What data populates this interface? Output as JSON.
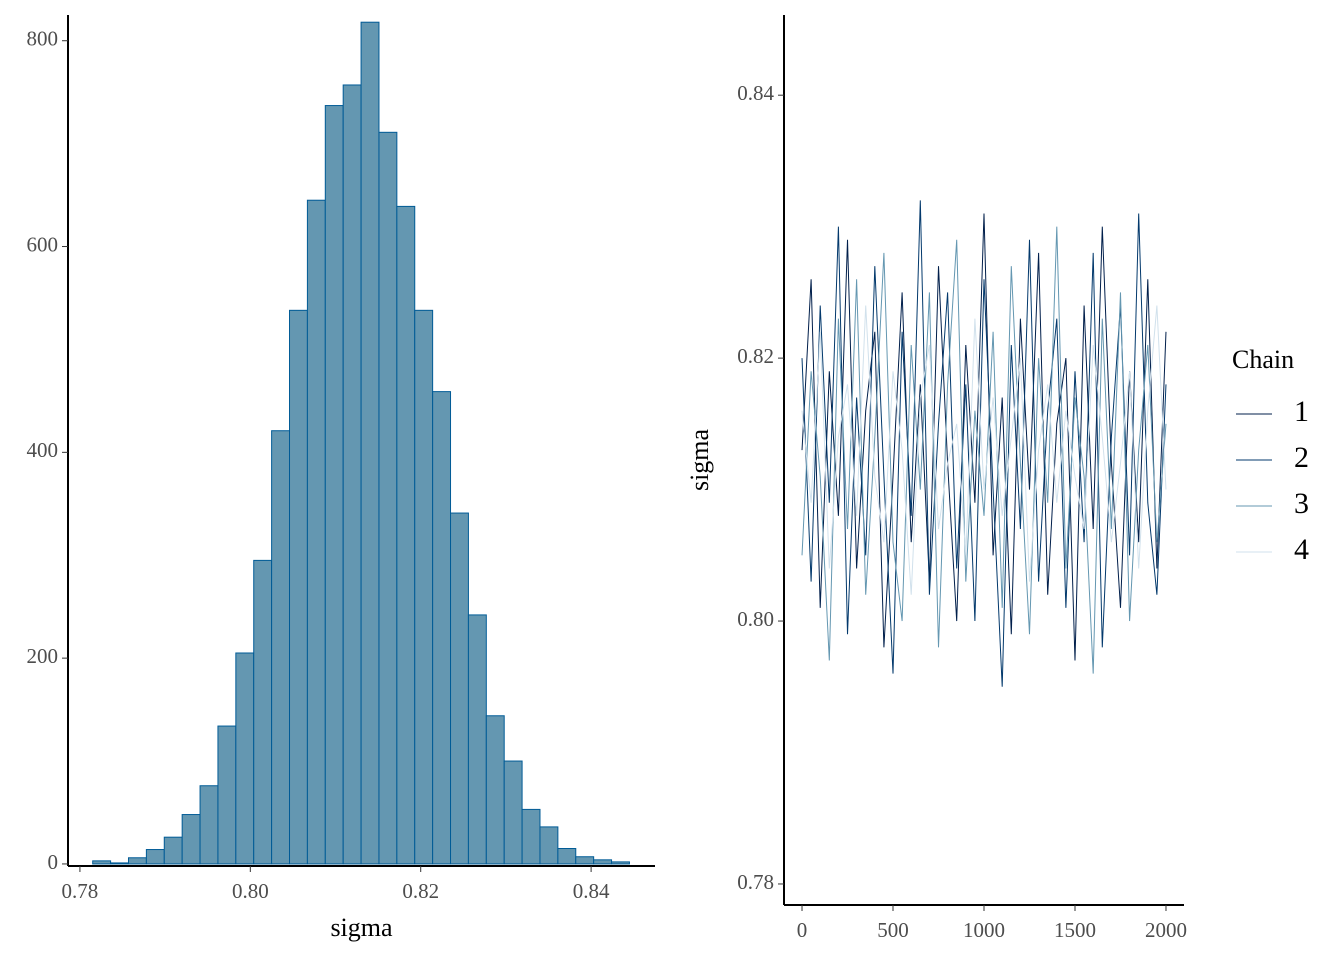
{
  "chart_data": [
    {
      "type": "histogram",
      "xlabel": "sigma",
      "bins": [
        0.7815,
        0.7836,
        0.7857,
        0.7878,
        0.7899,
        0.792,
        0.7941,
        0.7962,
        0.7983,
        0.8004,
        0.8025,
        0.8046,
        0.8067,
        0.8088,
        0.8109,
        0.813,
        0.8151,
        0.8172,
        0.8193,
        0.8214,
        0.8235,
        0.8256,
        0.8277,
        0.8298,
        0.8319,
        0.834,
        0.8361,
        0.8382,
        0.8403,
        0.8424,
        0.8445
      ],
      "values": [
        3,
        1,
        6,
        14,
        26,
        48,
        76,
        134,
        205,
        295,
        421,
        538,
        645,
        737,
        757,
        818,
        711,
        639,
        538,
        459,
        341,
        242,
        144,
        100,
        53,
        36,
        15,
        7,
        4,
        2
      ],
      "color": "#6497b1",
      "edge_color": "#005b96",
      "xlim": [
        0.7786,
        0.8475
      ],
      "ylim": [
        -2,
        825
      ],
      "xticks": [
        0.78,
        {
          "value": 0.8,
          "label": "0.80"
        },
        0.82,
        0.84
      ],
      "yticks": [
        0,
        200,
        400,
        600,
        800
      ]
    },
    {
      "type": "line",
      "ylabel": "sigma",
      "legend_title": "Chain",
      "x": [
        0,
        50,
        100,
        150,
        200,
        250,
        300,
        350,
        400,
        450,
        500,
        550,
        600,
        650,
        700,
        750,
        800,
        850,
        900,
        950,
        1000,
        1050,
        1100,
        1150,
        1200,
        1250,
        1300,
        1350,
        1400,
        1450,
        1500,
        1550,
        1600,
        1650,
        1700,
        1750,
        1800,
        1850,
        1900,
        1950,
        2000
      ],
      "series": [
        {
          "name": "1",
          "color": "#011f4b",
          "values": [
            0.813,
            0.826,
            0.801,
            0.819,
            0.808,
            0.829,
            0.804,
            0.816,
            0.822,
            0.798,
            0.811,
            0.825,
            0.806,
            0.818,
            0.803,
            0.827,
            0.812,
            0.8,
            0.821,
            0.809,
            0.831,
            0.805,
            0.817,
            0.799,
            0.823,
            0.81,
            0.828,
            0.802,
            0.815,
            0.82,
            0.797,
            0.824,
            0.807,
            0.83,
            0.812,
            0.801,
            0.819,
            0.806,
            0.826,
            0.804,
            0.822
          ]
        },
        {
          "name": "2",
          "color": "#03396c",
          "values": [
            0.82,
            0.803,
            0.824,
            0.809,
            0.83,
            0.799,
            0.817,
            0.805,
            0.827,
            0.811,
            0.796,
            0.822,
            0.808,
            0.832,
            0.802,
            0.815,
            0.825,
            0.804,
            0.818,
            0.8,
            0.826,
            0.81,
            0.795,
            0.821,
            0.807,
            0.829,
            0.803,
            0.816,
            0.823,
            0.801,
            0.819,
            0.806,
            0.828,
            0.798,
            0.814,
            0.824,
            0.805,
            0.831,
            0.809,
            0.802,
            0.818
          ]
        },
        {
          "name": "3",
          "color": "#6497b1",
          "values": [
            0.805,
            0.819,
            0.811,
            0.797,
            0.823,
            0.807,
            0.826,
            0.802,
            0.814,
            0.828,
            0.806,
            0.8,
            0.821,
            0.81,
            0.825,
            0.798,
            0.818,
            0.829,
            0.803,
            0.816,
            0.808,
            0.822,
            0.801,
            0.827,
            0.812,
            0.799,
            0.82,
            0.809,
            0.83,
            0.804,
            0.817,
            0.811,
            0.796,
            0.823,
            0.807,
            0.825,
            0.8,
            0.813,
            0.821,
            0.806,
            0.815
          ]
        },
        {
          "name": "4",
          "color": "#d1e1ec",
          "values": [
            0.816,
            0.809,
            0.822,
            0.804,
            0.814,
            0.818,
            0.808,
            0.824,
            0.811,
            0.806,
            0.819,
            0.813,
            0.802,
            0.817,
            0.821,
            0.807,
            0.812,
            0.815,
            0.805,
            0.823,
            0.81,
            0.817,
            0.808,
            0.814,
            0.82,
            0.803,
            0.813,
            0.818,
            0.809,
            0.816,
            0.811,
            0.807,
            0.821,
            0.814,
            0.806,
            0.812,
            0.819,
            0.804,
            0.816,
            0.824,
            0.81
          ]
        }
      ],
      "xlim": [
        -99,
        2099
      ],
      "ylim": [
        0.7784,
        0.8461
      ],
      "xticks": [
        0,
        500,
        1000,
        1500,
        2000
      ],
      "yticks": [
        0.78,
        {
          "value": 0.8,
          "label": "0.80"
        },
        0.82,
        0.84
      ]
    }
  ]
}
